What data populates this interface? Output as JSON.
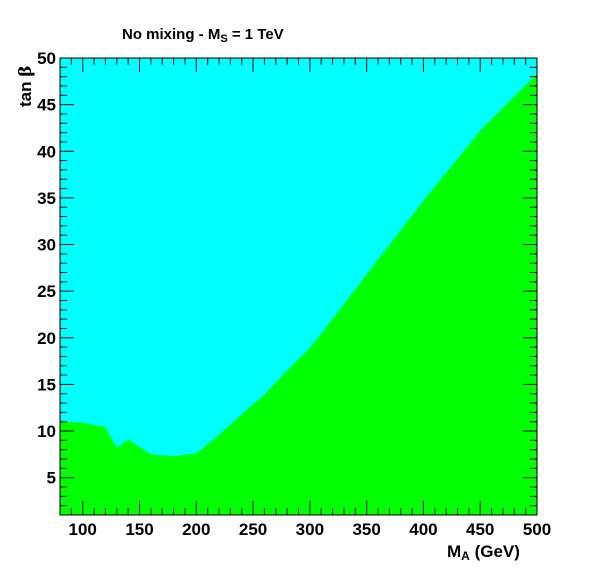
{
  "chart_data": {
    "type": "area",
    "title": {
      "text": "No mixing - M",
      "sub": "S",
      "suffix": " = 1 TeV"
    },
    "xlabel": {
      "text": "M",
      "sub": "A",
      "suffix": " (GeV)"
    },
    "ylabel": {
      "text": "tan ",
      "greek": "β"
    },
    "xlim": [
      80,
      500
    ],
    "ylim": [
      1,
      50
    ],
    "x_ticks": [
      100,
      150,
      200,
      250,
      300,
      350,
      400,
      450,
      500
    ],
    "y_ticks": [
      5,
      10,
      15,
      20,
      25,
      30,
      35,
      40,
      45,
      50
    ],
    "grid": false,
    "colors": {
      "upper_region": "#00ffff",
      "lower_region": "#00ff00"
    },
    "boundary": {
      "x": [
        80,
        100,
        120,
        130,
        140,
        160,
        180,
        200,
        220,
        240,
        260,
        280,
        300,
        320,
        350,
        400,
        450,
        500
      ],
      "y": [
        11.0,
        10.9,
        10.4,
        8.2,
        9.1,
        7.5,
        7.3,
        7.6,
        9.6,
        11.8,
        13.9,
        16.5,
        18.9,
        22.0,
        26.8,
        34.7,
        42.2,
        48.3
      ]
    }
  }
}
